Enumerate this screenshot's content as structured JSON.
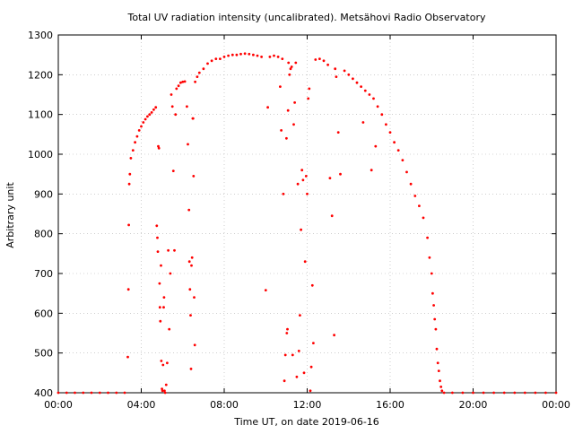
{
  "chart_data": {
    "type": "scatter",
    "title": "Total UV radiation intensity (uncalibrated). Metsähovi Radio Observatory",
    "xlabel": "Time UT, on date 2019-06-16",
    "ylabel": "Arbitrary unit",
    "xlim": [
      0,
      24
    ],
    "ylim": [
      400,
      1300
    ],
    "x_ticks": [
      {
        "value": 0,
        "label": "00:00"
      },
      {
        "value": 4,
        "label": "04:00"
      },
      {
        "value": 8,
        "label": "08:00"
      },
      {
        "value": 12,
        "label": "12:00"
      },
      {
        "value": 16,
        "label": "16:00"
      },
      {
        "value": 20,
        "label": "20:00"
      },
      {
        "value": 24,
        "label": "00:00"
      }
    ],
    "y_ticks": [
      400,
      500,
      600,
      700,
      800,
      900,
      1000,
      1100,
      1200,
      1300
    ],
    "grid": true,
    "marker_color": "#ff0000",
    "series": [
      {
        "points": [
          [
            0.0,
            400
          ],
          [
            0.4,
            400
          ],
          [
            0.8,
            400
          ],
          [
            1.2,
            400
          ],
          [
            1.6,
            400
          ],
          [
            2.0,
            400
          ],
          [
            2.4,
            400
          ],
          [
            2.8,
            400
          ],
          [
            3.2,
            400
          ],
          [
            3.35,
            490
          ],
          [
            3.38,
            660
          ],
          [
            3.4,
            822
          ],
          [
            3.42,
            925
          ],
          [
            3.45,
            950
          ],
          [
            3.5,
            990
          ],
          [
            3.6,
            1010
          ],
          [
            3.7,
            1030
          ],
          [
            3.8,
            1045
          ],
          [
            3.9,
            1060
          ],
          [
            4.0,
            1070
          ],
          [
            4.1,
            1080
          ],
          [
            4.2,
            1088
          ],
          [
            4.3,
            1095
          ],
          [
            4.4,
            1100
          ],
          [
            4.5,
            1105
          ],
          [
            4.6,
            1112
          ],
          [
            4.7,
            1118
          ],
          [
            4.75,
            820
          ],
          [
            4.78,
            790
          ],
          [
            4.8,
            755
          ],
          [
            4.82,
            1020
          ],
          [
            4.85,
            1015
          ],
          [
            4.88,
            675
          ],
          [
            4.9,
            615
          ],
          [
            4.92,
            580
          ],
          [
            4.95,
            720
          ],
          [
            4.97,
            480
          ],
          [
            5.0,
            410
          ],
          [
            5.02,
            405
          ],
          [
            5.05,
            470
          ],
          [
            5.08,
            615
          ],
          [
            5.1,
            640
          ],
          [
            5.12,
            405
          ],
          [
            5.15,
            400
          ],
          [
            5.2,
            420
          ],
          [
            5.25,
            475
          ],
          [
            5.3,
            758
          ],
          [
            5.35,
            560
          ],
          [
            5.4,
            700
          ],
          [
            5.45,
            1150
          ],
          [
            5.5,
            1120
          ],
          [
            5.55,
            958
          ],
          [
            5.6,
            758
          ],
          [
            5.65,
            1100
          ],
          [
            5.7,
            1165
          ],
          [
            5.8,
            1172
          ],
          [
            5.9,
            1180
          ],
          [
            6.0,
            1182
          ],
          [
            6.1,
            1183
          ],
          [
            6.2,
            1120
          ],
          [
            6.25,
            1025
          ],
          [
            6.3,
            860
          ],
          [
            6.32,
            730
          ],
          [
            6.35,
            660
          ],
          [
            6.38,
            595
          ],
          [
            6.4,
            460
          ],
          [
            6.42,
            720
          ],
          [
            6.45,
            740
          ],
          [
            6.48,
            1090
          ],
          [
            6.5,
            1090
          ],
          [
            6.52,
            945
          ],
          [
            6.55,
            640
          ],
          [
            6.58,
            520
          ],
          [
            6.6,
            1182
          ],
          [
            6.7,
            1195
          ],
          [
            6.8,
            1205
          ],
          [
            7.0,
            1215
          ],
          [
            7.2,
            1228
          ],
          [
            7.4,
            1235
          ],
          [
            7.6,
            1240
          ],
          [
            7.8,
            1240
          ],
          [
            8.0,
            1245
          ],
          [
            8.2,
            1248
          ],
          [
            8.4,
            1250
          ],
          [
            8.6,
            1250
          ],
          [
            8.8,
            1252
          ],
          [
            9.0,
            1253
          ],
          [
            9.2,
            1252
          ],
          [
            9.4,
            1250
          ],
          [
            9.6,
            1248
          ],
          [
            9.8,
            1245
          ],
          [
            10.0,
            658
          ],
          [
            10.1,
            1118
          ],
          [
            10.2,
            1245
          ],
          [
            10.4,
            1248
          ],
          [
            10.6,
            1245
          ],
          [
            10.7,
            1170
          ],
          [
            10.75,
            1060
          ],
          [
            10.8,
            1240
          ],
          [
            10.85,
            900
          ],
          [
            10.9,
            430
          ],
          [
            10.95,
            495
          ],
          [
            11.0,
            1040
          ],
          [
            11.02,
            550
          ],
          [
            11.05,
            560
          ],
          [
            11.08,
            1110
          ],
          [
            11.1,
            1230
          ],
          [
            11.15,
            1200
          ],
          [
            11.2,
            1215
          ],
          [
            11.25,
            1220
          ],
          [
            11.3,
            495
          ],
          [
            11.35,
            1075
          ],
          [
            11.4,
            1130
          ],
          [
            11.45,
            1230
          ],
          [
            11.5,
            440
          ],
          [
            11.55,
            925
          ],
          [
            11.6,
            505
          ],
          [
            11.65,
            595
          ],
          [
            11.7,
            810
          ],
          [
            11.75,
            960
          ],
          [
            11.8,
            935
          ],
          [
            11.85,
            450
          ],
          [
            11.9,
            730
          ],
          [
            11.95,
            945
          ],
          [
            12.0,
            900
          ],
          [
            12.05,
            1140
          ],
          [
            12.1,
            1165
          ],
          [
            12.15,
            405
          ],
          [
            12.2,
            465
          ],
          [
            12.25,
            670
          ],
          [
            12.3,
            525
          ],
          [
            12.4,
            1238
          ],
          [
            12.6,
            1240
          ],
          [
            12.8,
            1235
          ],
          [
            13.0,
            1225
          ],
          [
            13.1,
            940
          ],
          [
            13.2,
            845
          ],
          [
            13.3,
            545
          ],
          [
            13.35,
            1215
          ],
          [
            13.4,
            1195
          ],
          [
            13.5,
            1055
          ],
          [
            13.6,
            950
          ],
          [
            13.8,
            1210
          ],
          [
            14.0,
            1200
          ],
          [
            14.2,
            1190
          ],
          [
            14.4,
            1180
          ],
          [
            14.6,
            1170
          ],
          [
            14.7,
            1080
          ],
          [
            14.8,
            1160
          ],
          [
            15.0,
            1150
          ],
          [
            15.1,
            960
          ],
          [
            15.2,
            1140
          ],
          [
            15.3,
            1020
          ],
          [
            15.4,
            1120
          ],
          [
            15.6,
            1100
          ],
          [
            15.8,
            1075
          ],
          [
            16.0,
            1055
          ],
          [
            16.2,
            1030
          ],
          [
            16.4,
            1010
          ],
          [
            16.6,
            985
          ],
          [
            16.8,
            955
          ],
          [
            17.0,
            925
          ],
          [
            17.2,
            895
          ],
          [
            17.4,
            870
          ],
          [
            17.6,
            840
          ],
          [
            17.8,
            790
          ],
          [
            17.9,
            740
          ],
          [
            18.0,
            700
          ],
          [
            18.05,
            650
          ],
          [
            18.1,
            620
          ],
          [
            18.15,
            585
          ],
          [
            18.2,
            560
          ],
          [
            18.25,
            510
          ],
          [
            18.3,
            475
          ],
          [
            18.35,
            455
          ],
          [
            18.4,
            430
          ],
          [
            18.45,
            415
          ],
          [
            18.5,
            405
          ],
          [
            18.6,
            400
          ],
          [
            19.0,
            400
          ],
          [
            19.5,
            400
          ],
          [
            20.0,
            400
          ],
          [
            20.5,
            400
          ],
          [
            21.0,
            400
          ],
          [
            21.5,
            400
          ],
          [
            22.0,
            400
          ],
          [
            22.5,
            400
          ],
          [
            23.0,
            400
          ],
          [
            23.5,
            400
          ],
          [
            24.0,
            400
          ]
        ]
      }
    ]
  }
}
